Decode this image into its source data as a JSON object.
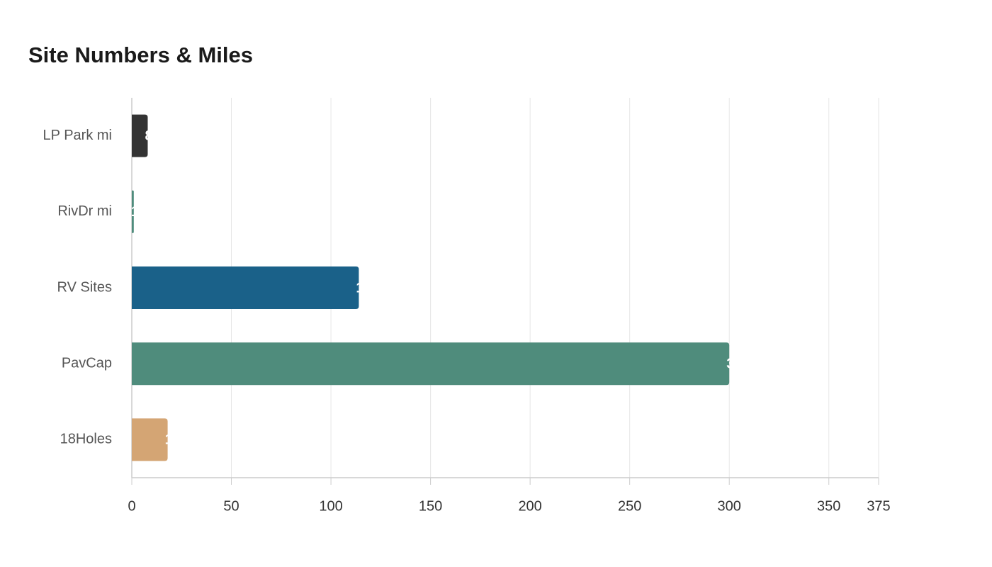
{
  "chart_data": {
    "type": "bar",
    "orientation": "horizontal",
    "title": "Site Numbers & Miles",
    "categories": [
      "LP Park mi",
      "RivDr mi",
      "RV Sites",
      "PavCap",
      "18Holes"
    ],
    "values": [
      8,
      1,
      114,
      300,
      18
    ],
    "colors": [
      "#333333",
      "#4f8c7c",
      "#1a6189",
      "#4f8c7c",
      "#d4a574"
    ],
    "xlim": [
      0,
      375
    ],
    "xticks": [
      0,
      50,
      100,
      150,
      200,
      250,
      300,
      350,
      375
    ],
    "grid": true
  }
}
